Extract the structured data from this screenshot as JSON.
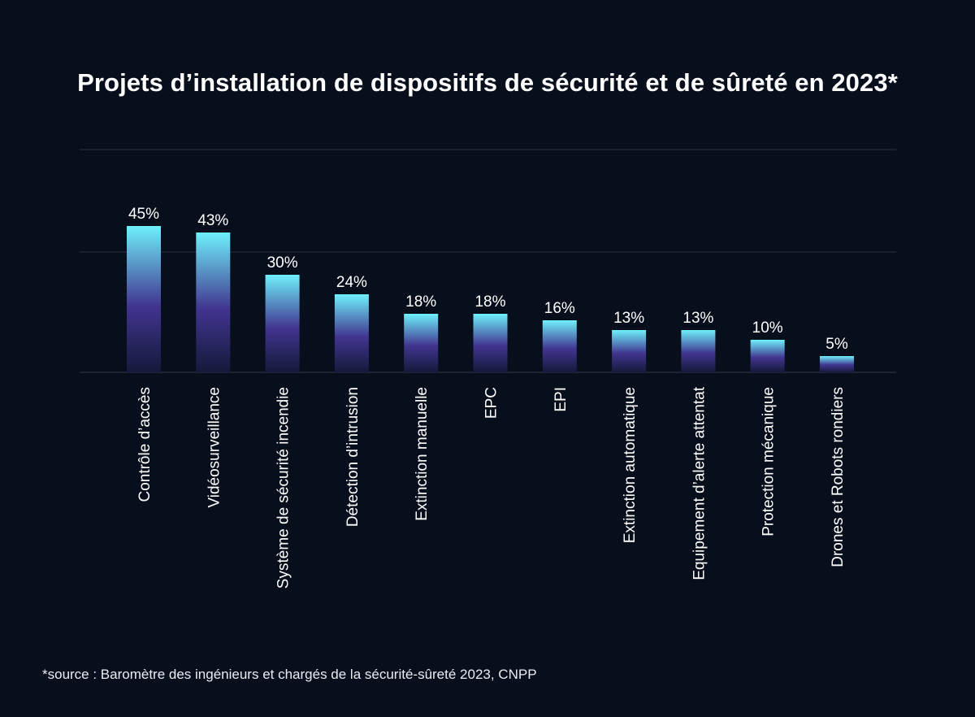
{
  "chart_data": {
    "type": "bar",
    "title": "Projets d’installation de dispositifs de sécurité et de sûreté en 2023*",
    "categories": [
      "Contrôle d’accès",
      "Vidéosurveillance",
      "Système de sécurité incendie",
      "Détection d’intrusion",
      "Extinction manuelle",
      "EPC",
      "EPI",
      "Extinction automatique",
      "Equipement d’alerte attentat",
      "Protection mécanique",
      "Drones et Robots rondiers"
    ],
    "values": [
      45,
      43,
      30,
      24,
      18,
      18,
      16,
      13,
      13,
      10,
      5
    ],
    "data_labels": [
      "45%",
      "43%",
      "30%",
      "24%",
      "18%",
      "18%",
      "16%",
      "13%",
      "13%",
      "10%",
      "5%"
    ],
    "unit": "%",
    "xlabel": "",
    "ylabel": "",
    "grid": true,
    "legend": "none",
    "colors": {
      "background": "#080f1c",
      "bar_top": "#6ff0fb",
      "bar_middle": "#41348f",
      "bar_bottom": "#141a3a",
      "gridline": "#2a3142",
      "text": "#ffffff"
    }
  },
  "footnote": "*source : Baromètre des ingénieurs et chargés de la sécurité-sûreté 2023, CNPP"
}
